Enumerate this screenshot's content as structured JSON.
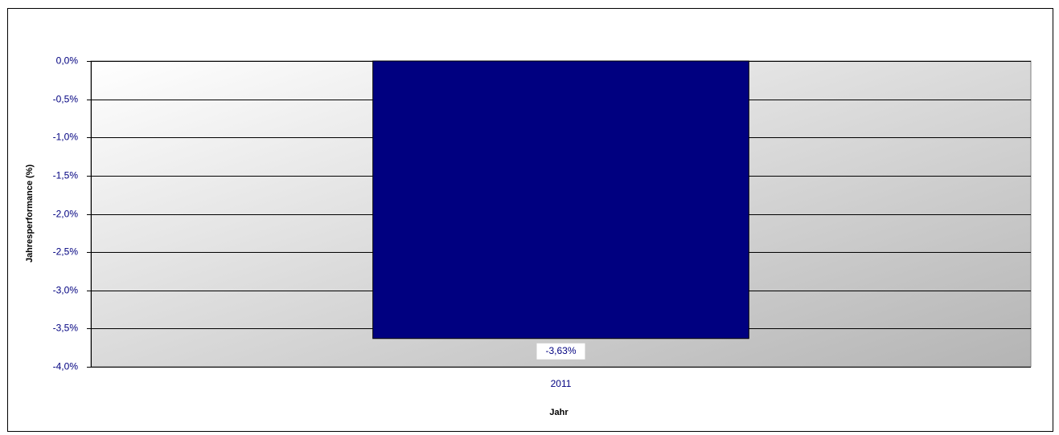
{
  "chart_data": {
    "type": "bar",
    "categories": [
      "2011"
    ],
    "values": [
      -3.63
    ],
    "value_labels": [
      "-3,63%"
    ],
    "color": "#000080",
    "x_label": "Jahr",
    "y_label": "Jahresperformance (%)",
    "ylim": [
      -4,
      0
    ],
    "yticks": [
      {
        "value": 0,
        "label": "0,0%"
      },
      {
        "value": -0.5,
        "label": "-0,5%"
      },
      {
        "value": -1,
        "label": "-1,0%"
      },
      {
        "value": -1.5,
        "label": "-1,5%"
      },
      {
        "value": -2,
        "label": "-2,0%"
      },
      {
        "value": -2.5,
        "label": "-2,5%"
      },
      {
        "value": -3,
        "label": "-3,0%"
      },
      {
        "value": -3.5,
        "label": "-3,5%"
      },
      {
        "value": -4,
        "label": "-4,0%"
      }
    ],
    "grid": true
  }
}
